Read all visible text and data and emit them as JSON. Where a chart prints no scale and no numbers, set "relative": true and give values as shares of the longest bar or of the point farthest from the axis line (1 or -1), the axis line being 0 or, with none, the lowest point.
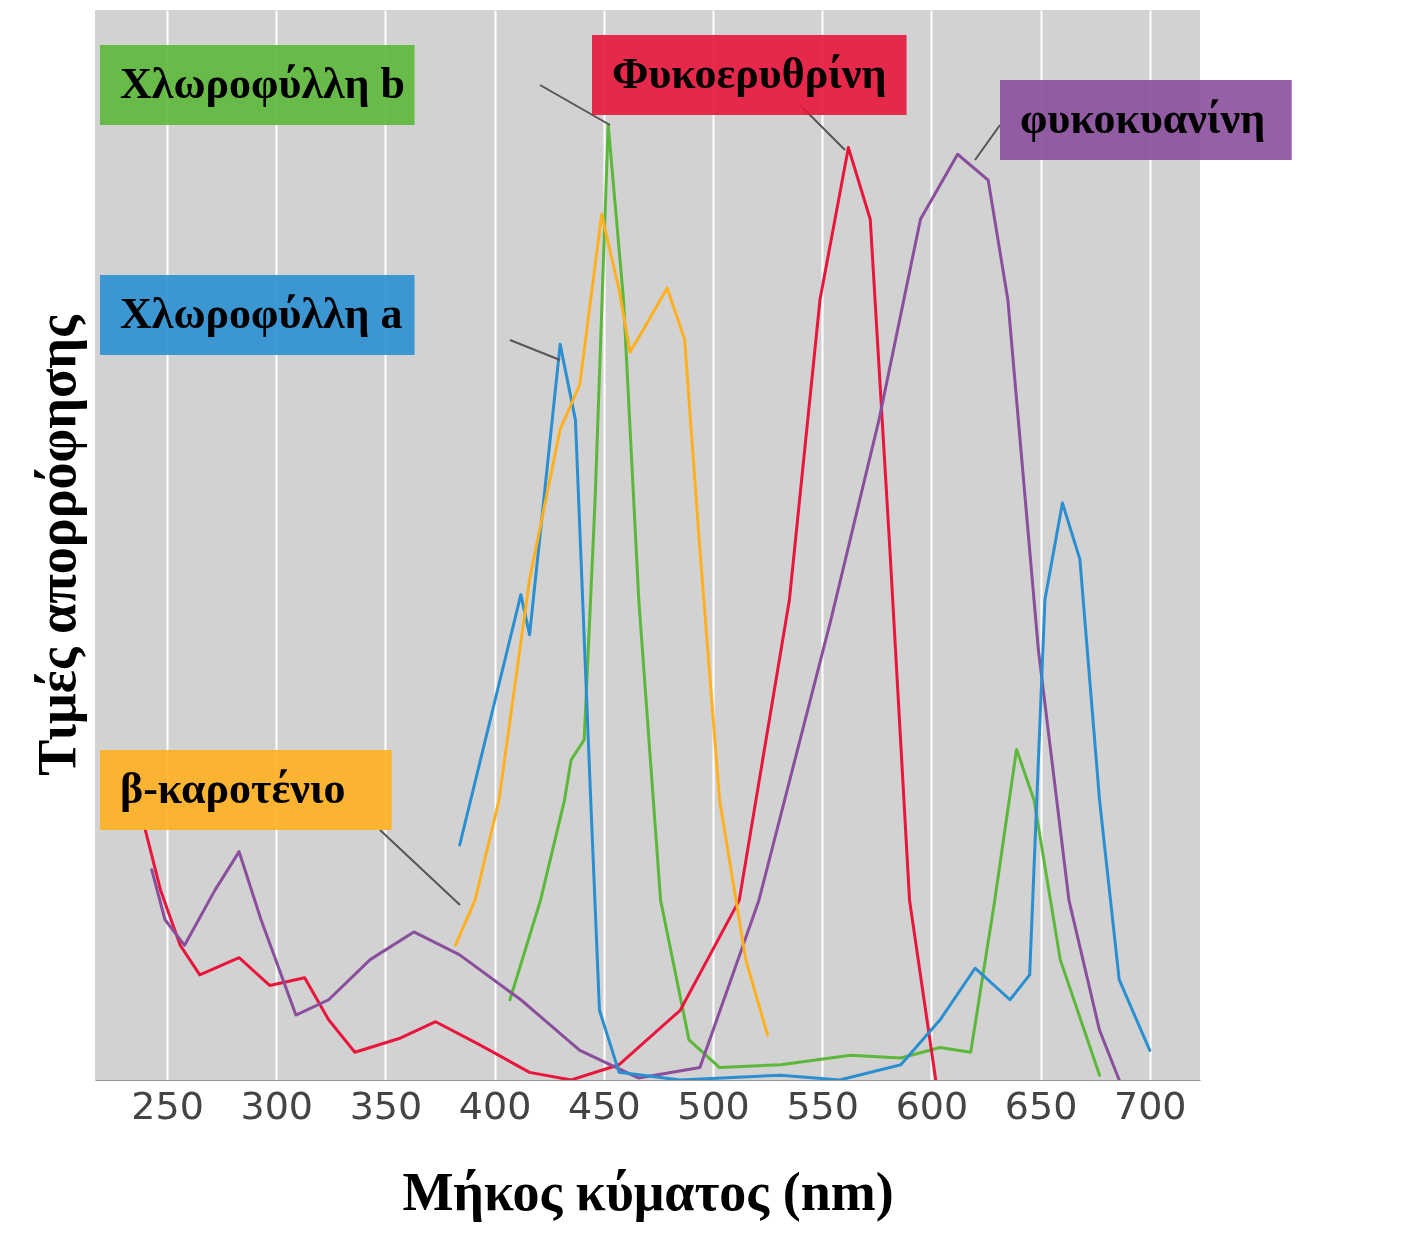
{
  "chart_data": {
    "type": "line",
    "xlabel": "Μήκος κύματος (nm)",
    "ylabel": "Τιμές απορρόφησης",
    "relative": true,
    "xlim": [
      217,
      723
    ],
    "xticks": [
      250,
      300,
      350,
      400,
      450,
      500,
      550,
      600,
      650,
      700
    ],
    "grid": "x",
    "marker": "none",
    "line_style": "solid",
    "series": [
      {
        "name": "Χλωροφύλλη b",
        "color": "#5cb83a",
        "x": [
          407,
          421,
          432,
          435,
          441,
          446,
          452,
          459,
          466,
          476,
          489,
          503,
          531,
          563,
          586,
          604,
          618,
          629,
          639,
          647,
          659,
          677
        ],
        "values": [
          0.084,
          0.188,
          0.293,
          0.335,
          0.356,
          0.607,
          1.0,
          0.817,
          0.503,
          0.188,
          0.042,
          0.013,
          0.016,
          0.026,
          0.023,
          0.034,
          0.029,
          0.188,
          0.346,
          0.293,
          0.126,
          0.005
        ]
      },
      {
        "name": "Φυκοερυθρίνη",
        "color": "#e8163c",
        "x": [
          240,
          247,
          256,
          265,
          283,
          297,
          313,
          324,
          336,
          357,
          373,
          393,
          416,
          435,
          457,
          485,
          512,
          535,
          549,
          562,
          572,
          581,
          590,
          602
        ],
        "values": [
          0.262,
          0.199,
          0.141,
          0.11,
          0.128,
          0.099,
          0.107,
          0.063,
          0.029,
          0.044,
          0.061,
          0.037,
          0.008,
          0,
          0.016,
          0.073,
          0.188,
          0.503,
          0.817,
          0.976,
          0.901,
          0.555,
          0.188,
          0
        ]
      },
      {
        "name": "φυκοκυανίνη",
        "color": "#8a4f9c",
        "x": [
          243,
          249,
          258,
          272,
          283,
          293,
          309,
          324,
          343,
          363,
          384,
          412,
          439,
          466,
          494,
          521,
          554,
          576,
          595,
          612,
          626,
          635,
          649,
          663,
          677,
          686
        ],
        "values": [
          0.22,
          0.168,
          0.141,
          0.199,
          0.239,
          0.168,
          0.068,
          0.084,
          0.126,
          0.155,
          0.131,
          0.084,
          0.031,
          0.002,
          0.013,
          0.188,
          0.482,
          0.691,
          0.901,
          0.969,
          0.942,
          0.817,
          0.45,
          0.188,
          0.052,
          0
        ]
      },
      {
        "name": "Χλωροφύλλη a",
        "color": "#2a8fd0",
        "x": [
          384,
          412,
          416,
          430,
          437,
          444,
          448,
          457,
          485,
          531,
          558,
          586,
          604,
          620,
          636,
          645,
          652,
          660,
          668,
          677,
          686,
          700
        ],
        "values": [
          0.246,
          0.508,
          0.466,
          0.77,
          0.691,
          0.293,
          0.073,
          0.008,
          0,
          0.005,
          0,
          0.016,
          0.063,
          0.117,
          0.084,
          0.11,
          0.503,
          0.604,
          0.545,
          0.293,
          0.105,
          0.031
        ]
      },
      {
        "name": "β-καροτένιο",
        "color": "#ffb020",
        "x": [
          382,
          391,
          402,
          416,
          430,
          439,
          449,
          457,
          462,
          468,
          479,
          487,
          494,
          503,
          515,
          525
        ],
        "values": [
          0.141,
          0.188,
          0.293,
          0.524,
          0.681,
          0.728,
          0.906,
          0.827,
          0.762,
          0.785,
          0.829,
          0.775,
          0.555,
          0.293,
          0.126,
          0.047
        ]
      }
    ]
  }
}
